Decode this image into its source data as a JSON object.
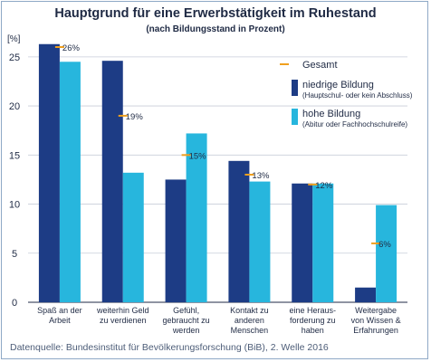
{
  "chart_data": {
    "type": "bar",
    "title": "Hauptgrund für eine Erwerbstätigkeit im Ruhestand",
    "subtitle": "(nach Bildungsstand in Prozent)",
    "ylabel": "[%]",
    "ylim": [
      0,
      26
    ],
    "yticks": [
      0,
      5,
      10,
      15,
      20,
      25
    ],
    "grid": true,
    "legend_position": "top-right",
    "categories": [
      [
        "Spaß an der",
        "Arbeit"
      ],
      [
        "weiterhin Geld",
        "zu verdienen"
      ],
      [
        "Gefühl,",
        "gebraucht zu",
        "werden"
      ],
      [
        "Kontakt zu",
        "anderen",
        "Menschen"
      ],
      [
        "eine Heraus-",
        "forderung zu",
        "haben"
      ],
      [
        "Weitergabe",
        "von Wissen &",
        "Erfahrungen"
      ]
    ],
    "series": [
      {
        "name": "niedrige Bildung",
        "note": "(Hauptschul- oder kein Abschluss)",
        "color": "#1d3c85",
        "values": [
          26.3,
          24.6,
          12.5,
          14.4,
          12.1,
          1.5
        ]
      },
      {
        "name": "hohe Bildung",
        "note": "(Abitur oder Fachhochschulreife)",
        "color": "#27b6dd",
        "values": [
          24.5,
          13.2,
          17.2,
          12.3,
          12.1,
          9.9
        ]
      },
      {
        "name": "Gesamt",
        "marker": "dash",
        "color": "#f0a01e",
        "values": [
          26,
          19,
          15,
          13,
          12,
          6
        ],
        "labels": [
          "26%",
          "19%",
          "15%",
          "13%",
          "12%",
          "6%"
        ]
      }
    ]
  },
  "source": "Datenquelle: Bundesinstitut für Bevölkerungsforschung (BiB), 2. Welle 2016"
}
